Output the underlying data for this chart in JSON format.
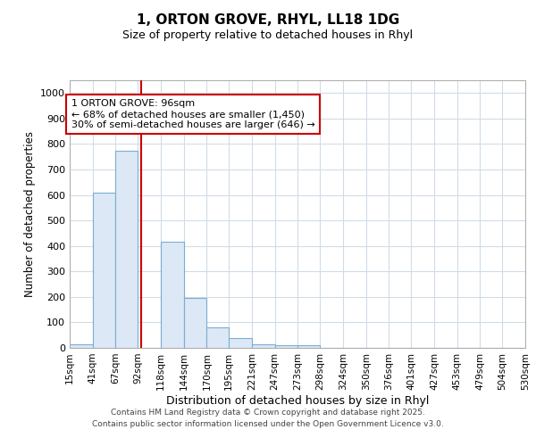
{
  "title_line1": "1, ORTON GROVE, RHYL, LL18 1DG",
  "title_line2": "Size of property relative to detached houses in Rhyl",
  "xlabel": "Distribution of detached houses by size in Rhyl",
  "ylabel": "Number of detached properties",
  "annotation_line1": "1 ORTON GROVE: 96sqm",
  "annotation_line2": "← 68% of detached houses are smaller (1,450)",
  "annotation_line3": "30% of semi-detached houses are larger (646) →",
  "property_size": 96,
  "bin_edges": [
    15,
    41,
    67,
    92,
    118,
    144,
    170,
    195,
    221,
    247,
    273,
    298,
    324,
    350,
    376,
    401,
    427,
    453,
    479,
    504,
    530
  ],
  "bar_heights": [
    15,
    610,
    775,
    0,
    415,
    195,
    80,
    40,
    15,
    10,
    10,
    0,
    0,
    0,
    0,
    0,
    0,
    0,
    0,
    0
  ],
  "bar_color": "#dce8f5",
  "bar_edge_color": "#7badd4",
  "red_line_color": "#cc0000",
  "background_color": "#ffffff",
  "plot_bg_color": "#ffffff",
  "grid_color": "#d0dce8",
  "ylim": [
    0,
    1050
  ],
  "yticks": [
    0,
    100,
    200,
    300,
    400,
    500,
    600,
    700,
    800,
    900,
    1000
  ],
  "footer_line1": "Contains HM Land Registry data © Crown copyright and database right 2025.",
  "footer_line2": "Contains public sector information licensed under the Open Government Licence v3.0."
}
